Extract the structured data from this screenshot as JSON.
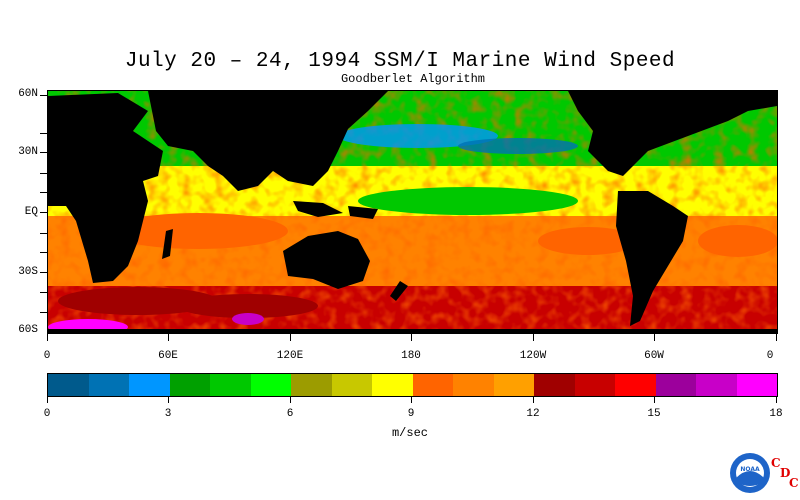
{
  "title": "July 20 – 24, 1994 SSM/I Marine Wind Speed",
  "subtitle": "Goodberlet Algorithm",
  "lat_labels": [
    "60N",
    "30N",
    "EQ",
    "30S",
    "60S"
  ],
  "lon_labels": [
    "0",
    "60E",
    "120E",
    "180",
    "120W",
    "60W",
    "0"
  ],
  "colorbar": {
    "colors": [
      "#005a8c",
      "#0072b4",
      "#0096ff",
      "#00a000",
      "#00c800",
      "#00ff00",
      "#9c9c00",
      "#c8c800",
      "#ffff00",
      "#ff6400",
      "#ff8200",
      "#ffa000",
      "#a00000",
      "#c80000",
      "#ff0000",
      "#9c009c",
      "#c800c8",
      "#ff00ff"
    ],
    "tick_labels": [
      "0",
      "3",
      "6",
      "9",
      "12",
      "15",
      "18"
    ],
    "units": "m/sec"
  },
  "logo": {
    "agency_text": "NOAA",
    "letters": [
      "C",
      "D",
      "C"
    ]
  }
}
